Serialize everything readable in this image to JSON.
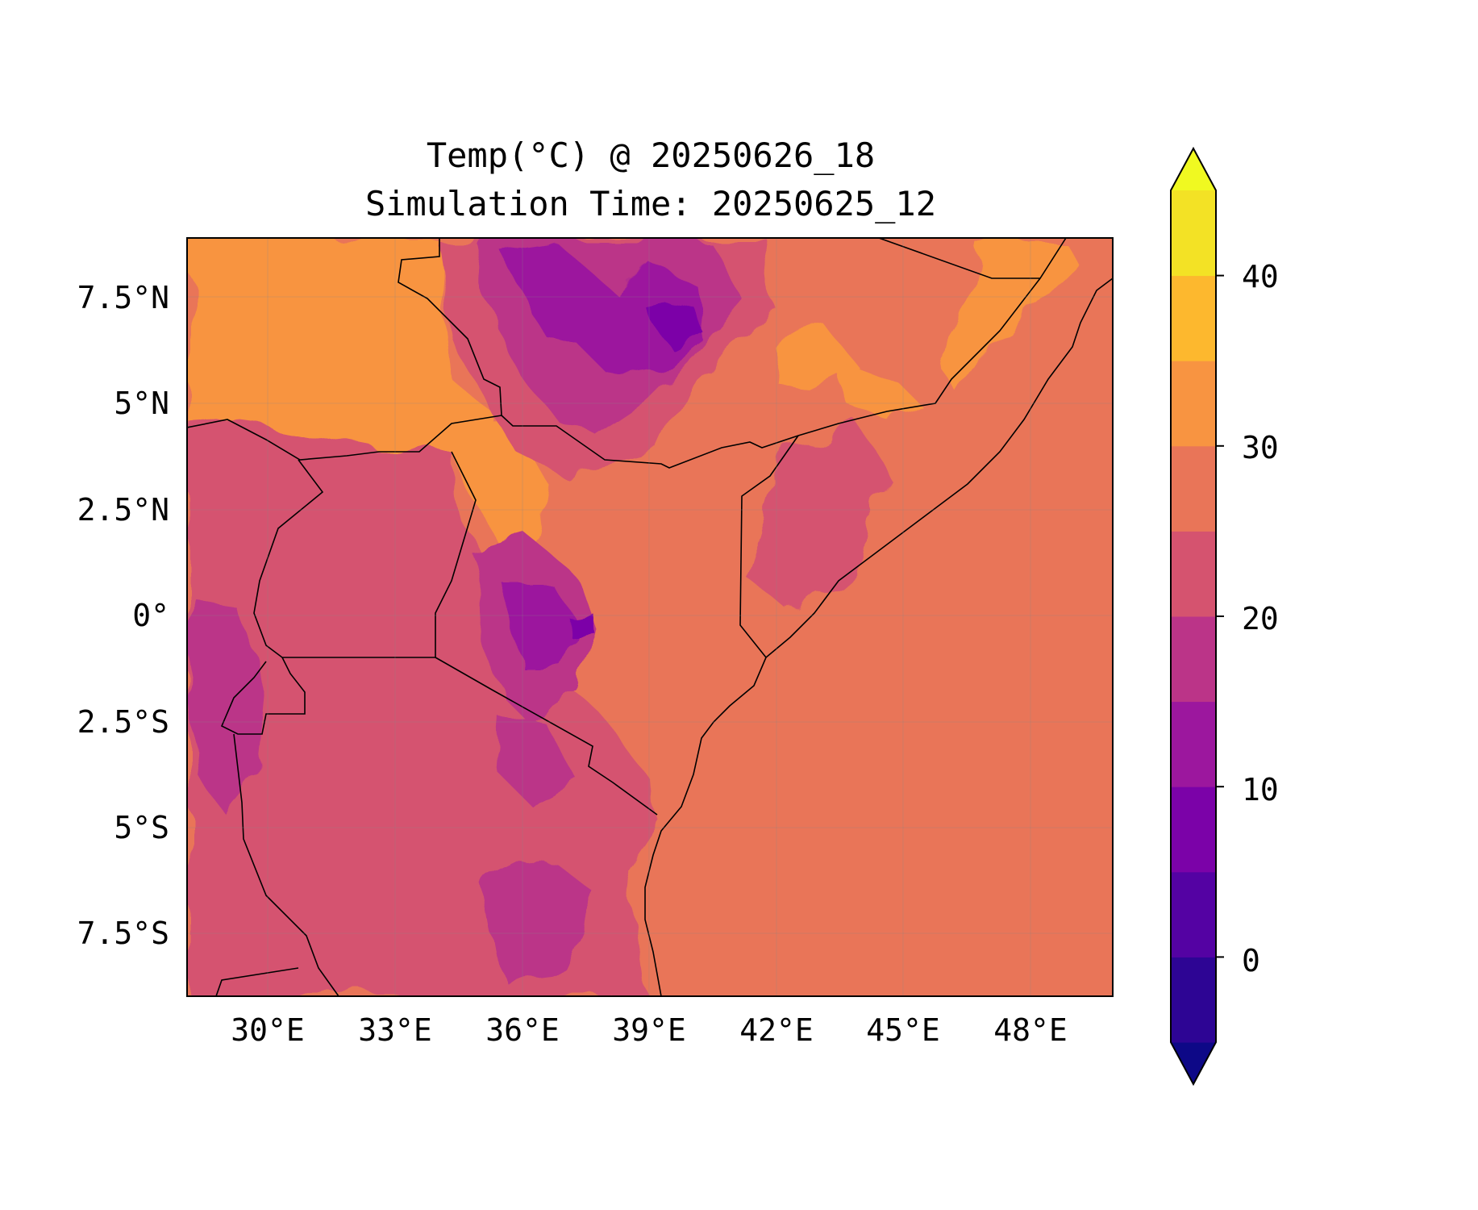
{
  "title": {
    "line1": "Temp(°C) @ 20250626_18",
    "line2": "Simulation Time: 20250625_12"
  },
  "map": {
    "variable": "Temp",
    "unit": "°C",
    "lon_labels": [
      "30°E",
      "33°E",
      "36°E",
      "39°E",
      "42°E",
      "45°E",
      "48°E"
    ],
    "lat_labels": [
      "7.5°N",
      "5°N",
      "2.5°N",
      "0°",
      "2.5°S",
      "5°S",
      "7.5°S"
    ],
    "ocean_color": "#e97558",
    "border_color": "#000000"
  },
  "colorbar": {
    "tick_labels": [
      "0",
      "10",
      "20",
      "30",
      "40"
    ],
    "colors": [
      "#0d0887",
      "#2d0594",
      "#5402a3",
      "#7b02a8",
      "#9c179e",
      "#bb3488",
      "#d5536f",
      "#e97558",
      "#f89441",
      "#fdb82e",
      "#f3e225",
      "#f0f921"
    ],
    "extend": "both",
    "levels": [
      -5,
      0,
      5,
      10,
      15,
      20,
      25,
      30,
      35,
      40,
      45
    ]
  }
}
